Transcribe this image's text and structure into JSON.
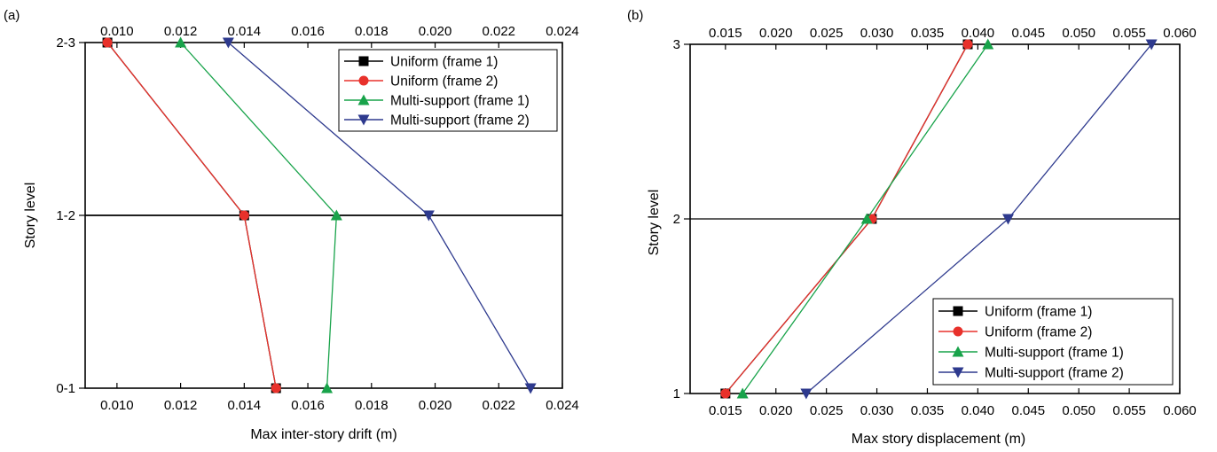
{
  "chart_data": [
    {
      "type": "line",
      "panel_label": "(a)",
      "xlabel": "Max inter-story drift (m)",
      "ylabel": "Story level",
      "xlim": [
        0.009,
        0.024
      ],
      "x_ticks": [
        "0.010",
        "0.012",
        "0.014",
        "0.016",
        "0.018",
        "0.020",
        "0.022",
        "0.024"
      ],
      "x_tick_values": [
        0.01,
        0.012,
        0.014,
        0.016,
        0.018,
        0.02,
        0.022,
        0.024
      ],
      "y_categories": [
        "0-1",
        "1-2",
        "2-3"
      ],
      "legend_placement": "top-right",
      "series": [
        {
          "name": "Uniform (frame 1)",
          "color": "#000000",
          "marker": "square",
          "x": [
            0.015,
            0.014,
            0.0097
          ]
        },
        {
          "name": "Uniform (frame 2)",
          "color": "#e8312b",
          "marker": "circle",
          "x": [
            0.015,
            0.014,
            0.0097
          ]
        },
        {
          "name": "Multi-support (frame 1)",
          "color": "#18a34a",
          "marker": "triangle-up",
          "x": [
            0.0166,
            0.0169,
            0.012
          ]
        },
        {
          "name": "Multi-support (frame 2)",
          "color": "#2e3a8e",
          "marker": "triangle-down",
          "x": [
            0.023,
            0.0198,
            0.0135
          ]
        }
      ]
    },
    {
      "type": "line",
      "panel_label": "(b)",
      "xlabel": "Max story displacement (m)",
      "ylabel": "Story level",
      "xlim": [
        0.0115,
        0.06
      ],
      "x_ticks": [
        "0.015",
        "0.020",
        "0.025",
        "0.030",
        "0.035",
        "0.040",
        "0.045",
        "0.050",
        "0.055",
        "0.060"
      ],
      "x_tick_values": [
        0.015,
        0.02,
        0.025,
        0.03,
        0.035,
        0.04,
        0.045,
        0.05,
        0.055,
        0.06
      ],
      "y_categories": [
        "1",
        "2",
        "3"
      ],
      "legend_placement": "bottom-right",
      "series": [
        {
          "name": "Uniform (frame 1)",
          "color": "#000000",
          "marker": "square",
          "x": [
            0.015,
            0.0295,
            0.039
          ]
        },
        {
          "name": "Uniform (frame 2)",
          "color": "#e8312b",
          "marker": "circle",
          "x": [
            0.015,
            0.0295,
            0.039
          ]
        },
        {
          "name": "Multi-support (frame 1)",
          "color": "#18a34a",
          "marker": "triangle-up",
          "x": [
            0.0167,
            0.029,
            0.041
          ]
        },
        {
          "name": "Multi-support (frame 2)",
          "color": "#2e3a8e",
          "marker": "triangle-down",
          "x": [
            0.023,
            0.043,
            0.0572
          ]
        }
      ]
    }
  ]
}
